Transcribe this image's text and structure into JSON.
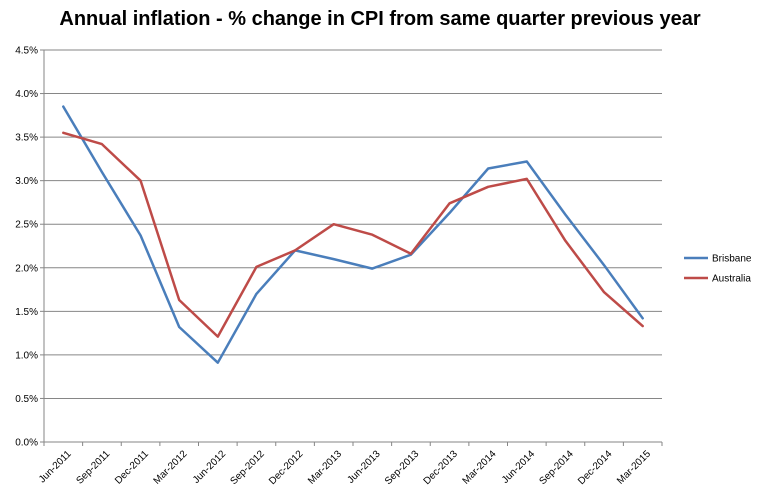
{
  "chart_data": {
    "type": "line",
    "title": "Annual inflation - % change in CPI from same quarter previous year",
    "xlabel": "",
    "ylabel": "",
    "categories": [
      "Jun-2011",
      "Sep-2011",
      "Dec-2011",
      "Mar-2012",
      "Jun-2012",
      "Sep-2012",
      "Dec-2012",
      "Mar-2013",
      "Jun-2013",
      "Sep-2013",
      "Dec-2013",
      "Mar-2014",
      "Jun-2014",
      "Sep-2014",
      "Dec-2014",
      "Mar-2015"
    ],
    "series": [
      {
        "name": "Brisbane",
        "color": "#4a7ebb",
        "values": [
          3.85,
          3.1,
          2.37,
          1.32,
          0.91,
          1.7,
          2.2,
          2.1,
          1.99,
          2.15,
          2.63,
          3.14,
          3.22,
          2.61,
          2.03,
          1.42
        ]
      },
      {
        "name": "Australia",
        "color": "#be4b48",
        "values": [
          3.55,
          3.42,
          3.0,
          1.63,
          1.21,
          2.01,
          2.2,
          2.5,
          2.38,
          2.16,
          2.74,
          2.93,
          3.02,
          2.31,
          1.72,
          1.33
        ]
      }
    ],
    "ylim": [
      0,
      4.5
    ],
    "yticks": [
      "0.0%",
      "0.5%",
      "1.0%",
      "1.5%",
      "2.0%",
      "2.5%",
      "3.0%",
      "3.5%",
      "4.0%",
      "4.5%"
    ],
    "ytick_values": [
      0,
      0.5,
      1.0,
      1.5,
      2.0,
      2.5,
      3.0,
      3.5,
      4.0,
      4.5
    ],
    "grid": true,
    "legend_position": "right"
  }
}
